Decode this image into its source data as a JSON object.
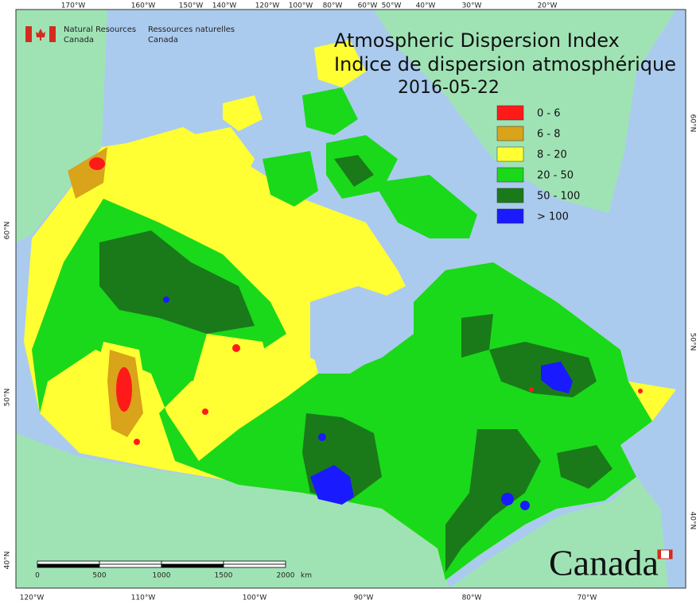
{
  "header": {
    "agency_en": [
      "Natural Resources",
      "Canada"
    ],
    "agency_fr": [
      "Ressources naturelles",
      "Canada"
    ]
  },
  "title": {
    "line1": "Atmospheric Dispersion Index",
    "line2": "Indice de dispersion atmosphérique",
    "date": "2016-05-22"
  },
  "legend": [
    {
      "label": "0 - 6",
      "color": "#ff1a1a"
    },
    {
      "label": "6 - 8",
      "color": "#d9a31a"
    },
    {
      "label": "8 - 20",
      "color": "#ffff33"
    },
    {
      "label": "20 - 50",
      "color": "#1ad91a"
    },
    {
      "label": "50 - 100",
      "color": "#1a7a1a"
    },
    {
      "label": "> 100",
      "color": "#1a1aff"
    }
  ],
  "graticule": {
    "top": [
      "170°W",
      "160°W",
      "150°W",
      "140°W",
      "120°W",
      "100°W",
      "80°W",
      "60°W",
      "50°W",
      "40°W",
      "30°W",
      "20°W"
    ],
    "bottom": [
      "120°W",
      "110°W",
      "100°W",
      "90°W",
      "80°W",
      "70°W"
    ],
    "left": [
      "60°N",
      "50°N",
      "40°N"
    ],
    "right": [
      "60°N",
      "50°N",
      "40°N"
    ]
  },
  "scale_bar": {
    "ticks": [
      "0",
      "500",
      "1000",
      "1500",
      "2000"
    ],
    "unit": "km"
  },
  "wordmark": "Canada"
}
